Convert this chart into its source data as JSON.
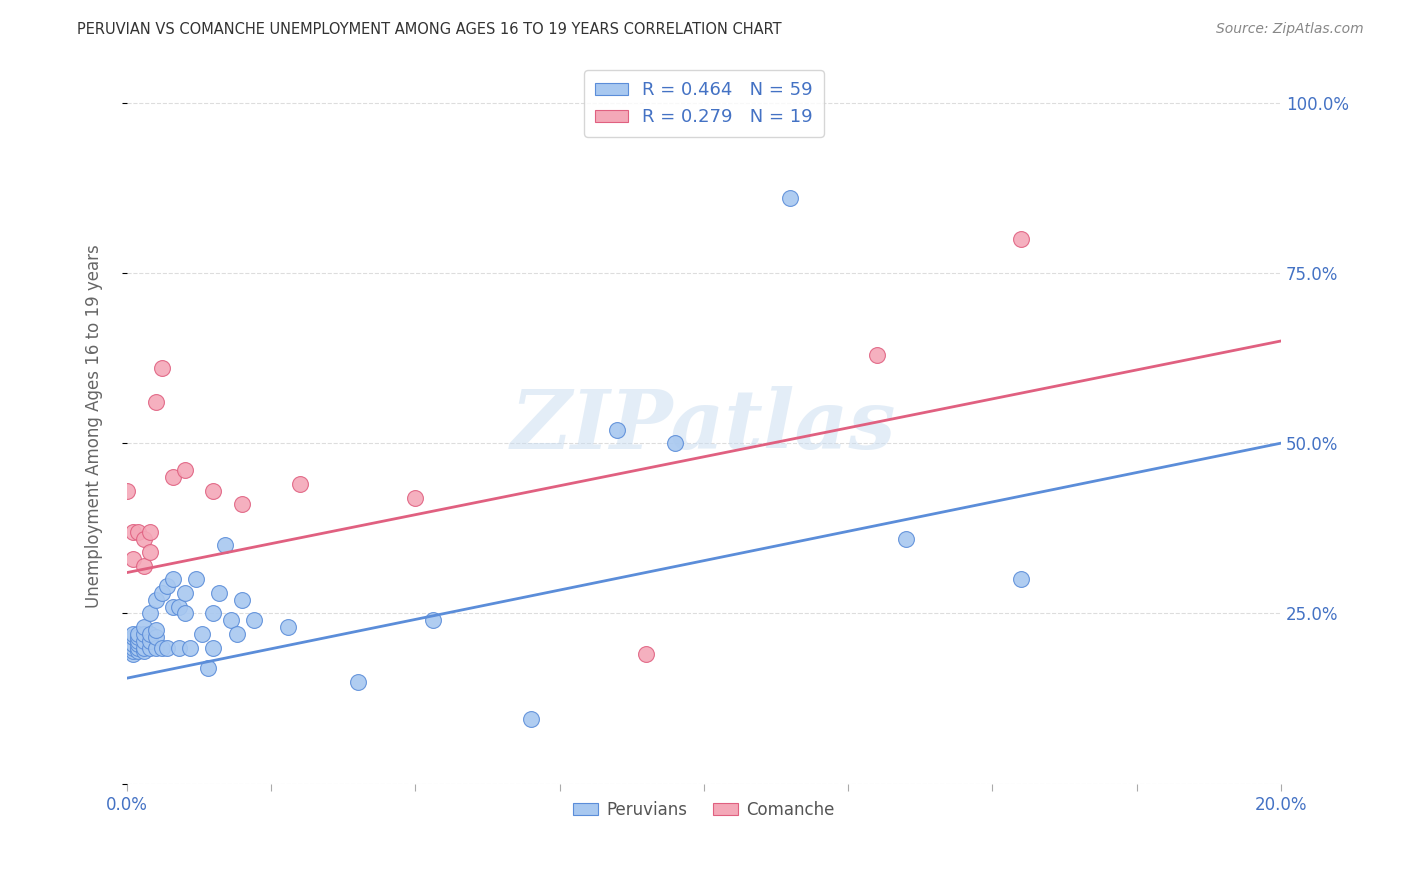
{
  "title": "PERUVIAN VS COMANCHE UNEMPLOYMENT AMONG AGES 16 TO 19 YEARS CORRELATION CHART",
  "source": "Source: ZipAtlas.com",
  "ylabel": "Unemployment Among Ages 16 to 19 years",
  "xlim": [
    0.0,
    0.2
  ],
  "ylim": [
    0.0,
    1.05
  ],
  "xticks": [
    0.0,
    0.025,
    0.05,
    0.075,
    0.1,
    0.125,
    0.15,
    0.175,
    0.2
  ],
  "xticklabels": [
    "0.0%",
    "",
    "",
    "",
    "",
    "",
    "",
    "",
    "20.0%"
  ],
  "yticks": [
    0.0,
    0.25,
    0.5,
    0.75,
    1.0
  ],
  "yticklabels": [
    "",
    "25.0%",
    "50.0%",
    "75.0%",
    "100.0%"
  ],
  "blue_color": "#A8C8F0",
  "pink_color": "#F4A8B8",
  "blue_edge_color": "#5B8DD9",
  "pink_edge_color": "#E06080",
  "blue_line_color": "#5B8DD9",
  "pink_line_color": "#E06080",
  "peruvian_x": [
    0.0,
    0.0,
    0.0,
    0.001,
    0.001,
    0.001,
    0.001,
    0.001,
    0.001,
    0.002,
    0.002,
    0.002,
    0.002,
    0.002,
    0.002,
    0.003,
    0.003,
    0.003,
    0.003,
    0.003,
    0.004,
    0.004,
    0.004,
    0.004,
    0.005,
    0.005,
    0.005,
    0.005,
    0.006,
    0.006,
    0.007,
    0.007,
    0.008,
    0.008,
    0.009,
    0.009,
    0.01,
    0.01,
    0.011,
    0.012,
    0.013,
    0.014,
    0.015,
    0.015,
    0.016,
    0.017,
    0.018,
    0.019,
    0.02,
    0.022,
    0.028,
    0.04,
    0.053,
    0.07,
    0.085,
    0.095,
    0.115,
    0.135,
    0.155
  ],
  "peruvian_y": [
    0.2,
    0.205,
    0.21,
    0.19,
    0.195,
    0.2,
    0.205,
    0.215,
    0.22,
    0.195,
    0.2,
    0.205,
    0.21,
    0.215,
    0.22,
    0.195,
    0.2,
    0.21,
    0.22,
    0.23,
    0.2,
    0.21,
    0.22,
    0.25,
    0.2,
    0.215,
    0.225,
    0.27,
    0.2,
    0.28,
    0.2,
    0.29,
    0.26,
    0.3,
    0.26,
    0.2,
    0.25,
    0.28,
    0.2,
    0.3,
    0.22,
    0.17,
    0.25,
    0.2,
    0.28,
    0.35,
    0.24,
    0.22,
    0.27,
    0.24,
    0.23,
    0.15,
    0.24,
    0.095,
    0.52,
    0.5,
    0.86,
    0.36,
    0.3
  ],
  "comanche_x": [
    0.0,
    0.001,
    0.001,
    0.002,
    0.003,
    0.003,
    0.004,
    0.004,
    0.005,
    0.006,
    0.008,
    0.01,
    0.015,
    0.02,
    0.03,
    0.05,
    0.09,
    0.13,
    0.155
  ],
  "comanche_y": [
    0.43,
    0.33,
    0.37,
    0.37,
    0.32,
    0.36,
    0.34,
    0.37,
    0.56,
    0.61,
    0.45,
    0.46,
    0.43,
    0.41,
    0.44,
    0.42,
    0.19,
    0.63,
    0.8
  ],
  "blue_line_x0": 0.0,
  "blue_line_y0": 0.155,
  "blue_line_x1": 0.2,
  "blue_line_y1": 0.5,
  "pink_line_x0": 0.0,
  "pink_line_y0": 0.31,
  "pink_line_x1": 0.2,
  "pink_line_y1": 0.65,
  "watermark_text": "ZIPatlas",
  "watermark_color": "#C8DCF0",
  "watermark_alpha": 0.5,
  "grid_color": "#DDDDDD",
  "background_color": "#FFFFFF",
  "title_color": "#333333",
  "source_color": "#888888",
  "tick_color": "#4472C4",
  "ylabel_color": "#666666",
  "legend_top_labels": [
    "R = 0.464   N = 59",
    "R = 0.279   N = 19"
  ],
  "legend_bottom_labels": [
    "Peruvians",
    "Comanche"
  ]
}
